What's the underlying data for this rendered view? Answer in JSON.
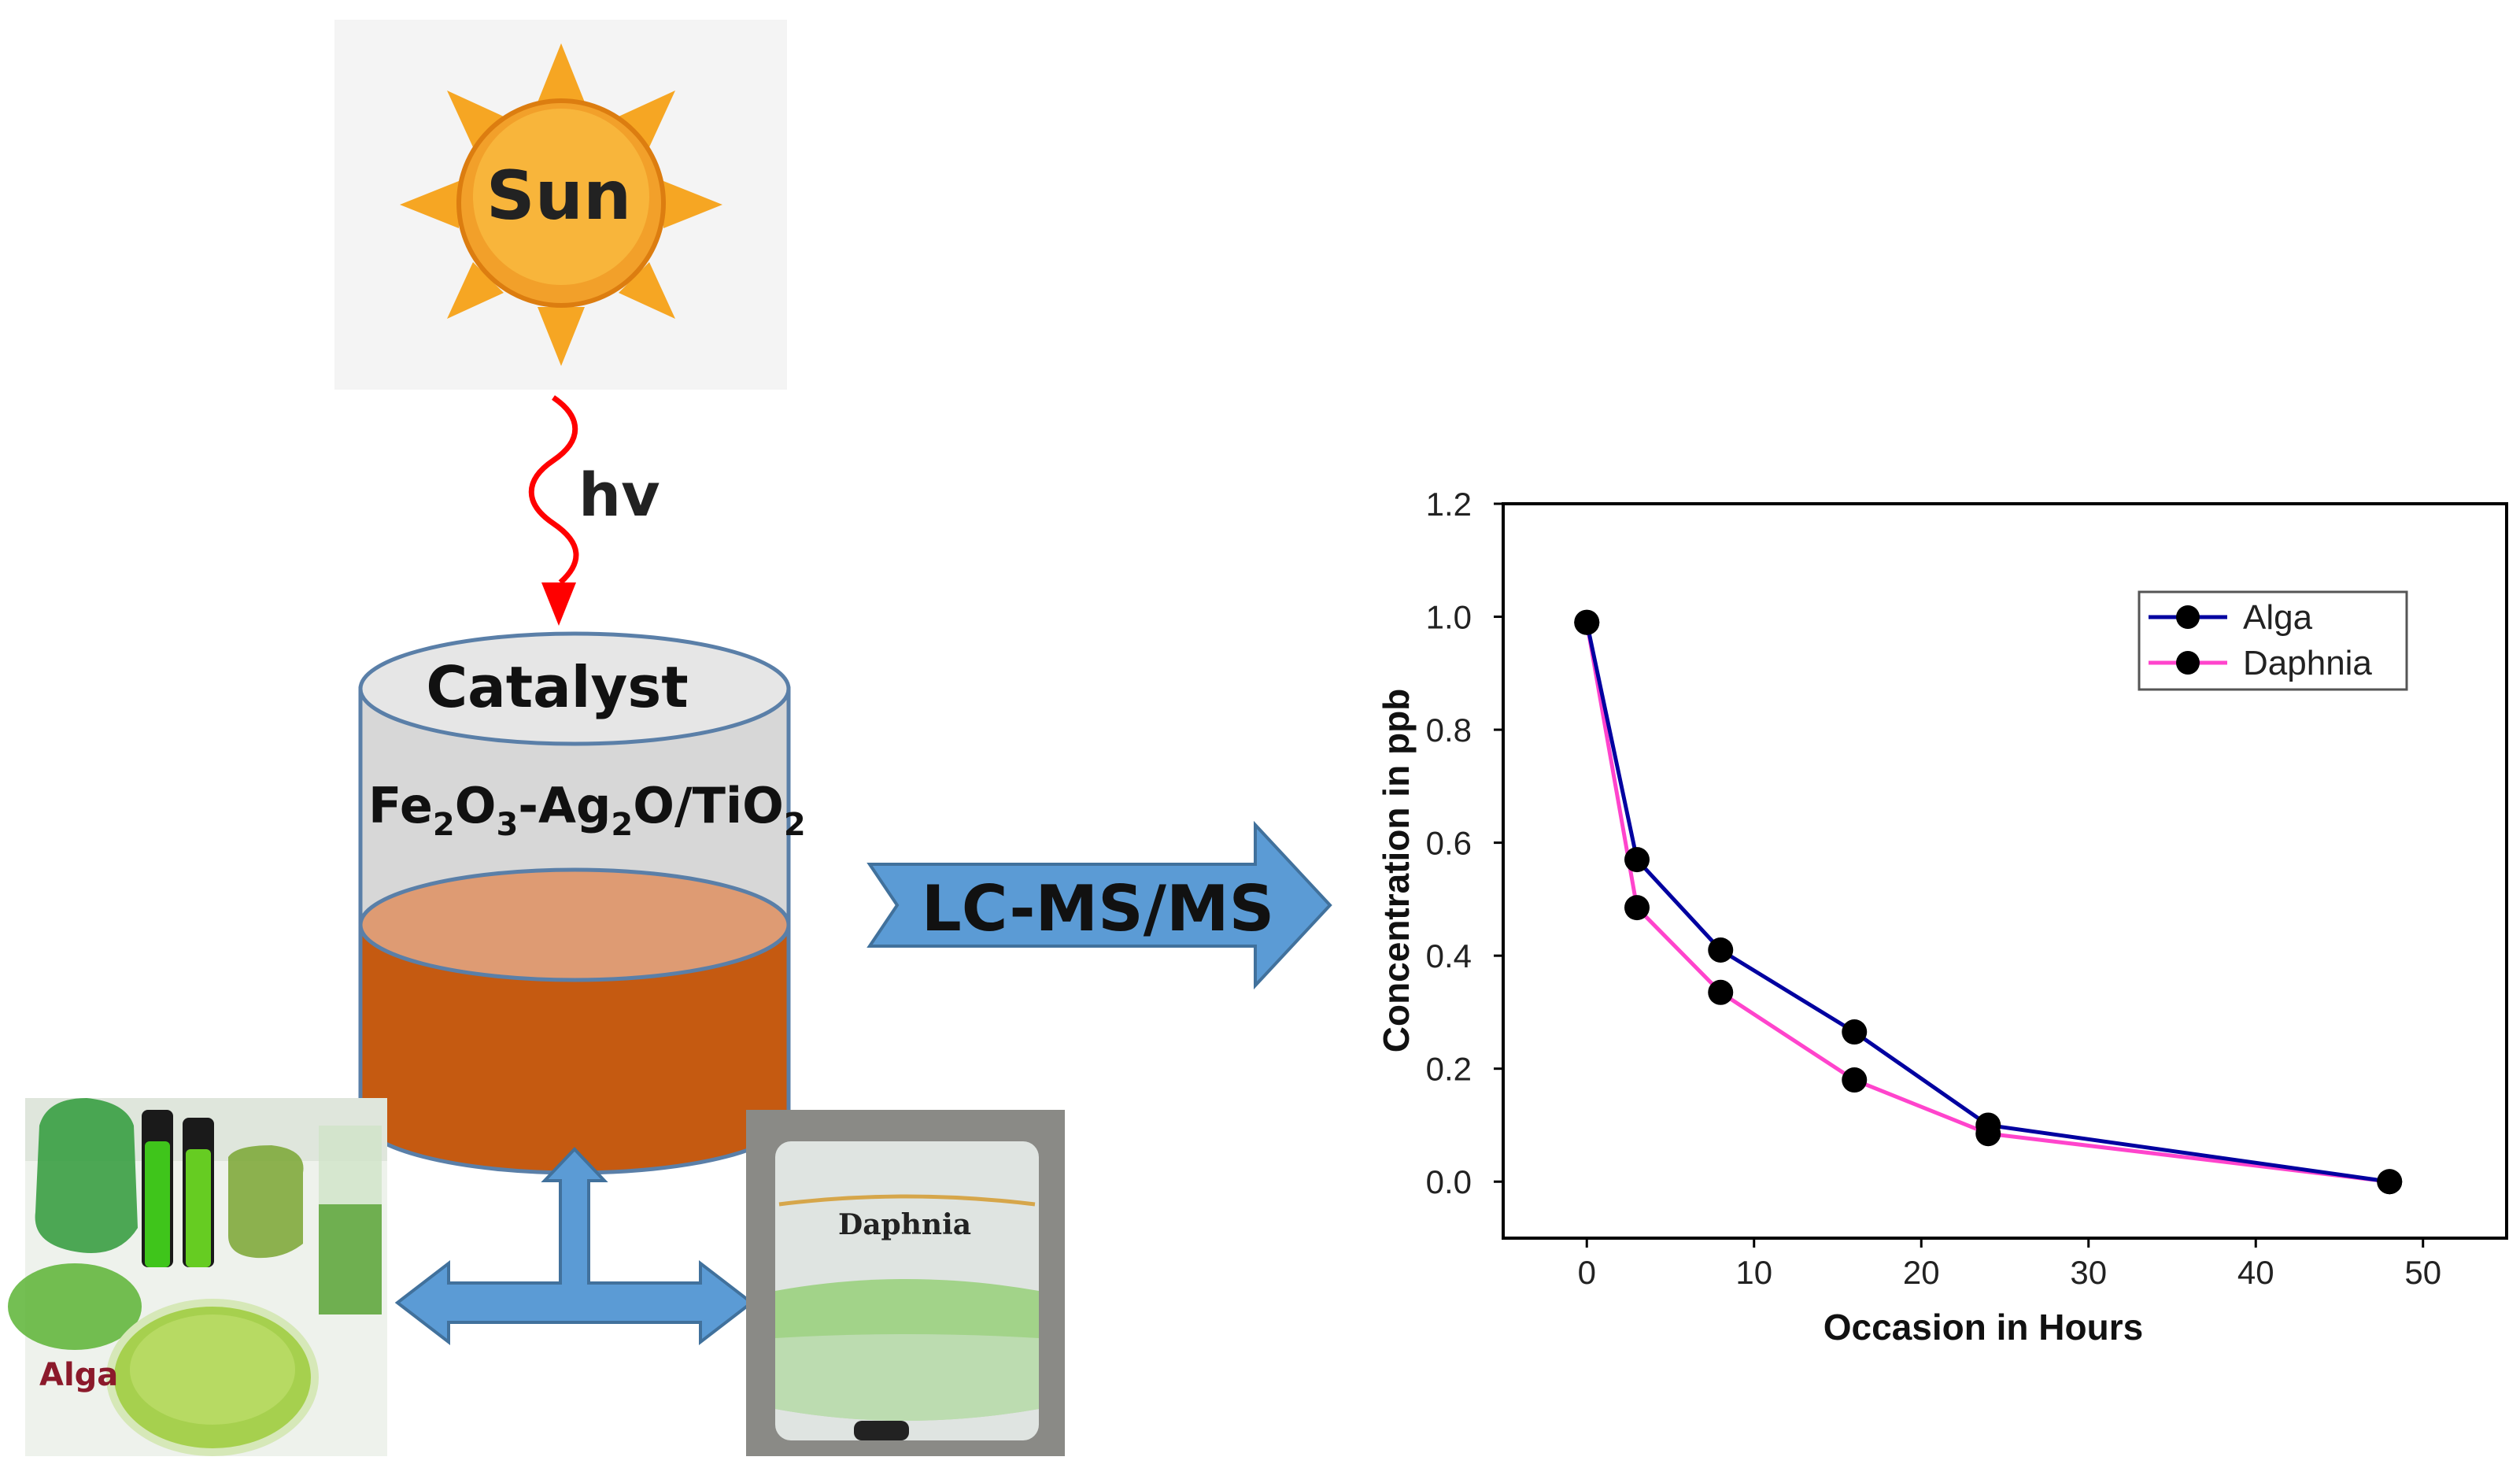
{
  "diagram": {
    "sun_label": "Sun",
    "hv_label": "hv",
    "catalyst_label": "Catalyst",
    "formula": {
      "p1": "Fe",
      "s1": "2",
      "p2": "O",
      "s2": "3",
      "p3": "-Ag",
      "s3": "2",
      "p4": "O/TiO",
      "s4": "2"
    },
    "arrow_label": "LC-MS/MS",
    "photo_left_label": "Alga",
    "photo_right_label": "Daphnia"
  },
  "colors": {
    "sun_core": "#f7a21b",
    "sun_rays": "#f6a623",
    "hv_wave": "#ff0000",
    "cylinder_top": "#e6e6e6",
    "cylinder_liquid_top": "#de9b73",
    "cylinder_liquid": "#c55a11",
    "arrow_fill": "#5b9bd5",
    "alga_line": "#0000a0",
    "daphnia_line": "#ff44cc",
    "marker": "#000000"
  },
  "chart_data": {
    "type": "line",
    "title": "",
    "xlabel": "Occasion in Hours",
    "ylabel": "Concentration in ppb",
    "xlim": [
      -5,
      55
    ],
    "ylim": [
      -0.1,
      1.2
    ],
    "xticks": [
      0,
      10,
      20,
      30,
      40,
      50
    ],
    "yticks": [
      0.0,
      0.2,
      0.4,
      0.6,
      0.8,
      1.0,
      1.2
    ],
    "ytick_labels": [
      "0.0",
      "0.2",
      "0.4",
      "0.6",
      "0.8",
      "1.0",
      "1.2"
    ],
    "grid": false,
    "legend_position": "top-right",
    "series": [
      {
        "name": "Alga",
        "color": "#0000a0",
        "x": [
          0,
          3,
          8,
          16,
          24,
          48
        ],
        "y": [
          0.99,
          0.57,
          0.41,
          0.265,
          0.1,
          0.0
        ]
      },
      {
        "name": "Daphnia",
        "color": "#ff44cc",
        "x": [
          0,
          3,
          8,
          16,
          24,
          48
        ],
        "y": [
          0.99,
          0.485,
          0.335,
          0.18,
          0.085,
          0.0
        ]
      }
    ]
  }
}
